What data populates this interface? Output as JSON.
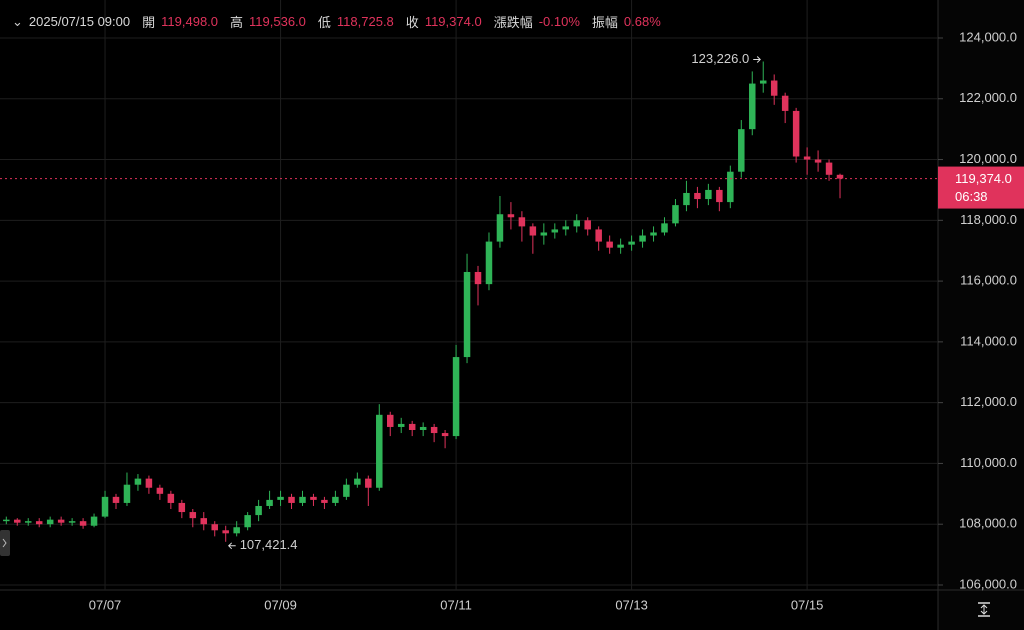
{
  "header": {
    "datetime": "2025/07/15 09:00",
    "items": [
      {
        "label": "開",
        "value": "119,498.0"
      },
      {
        "label": "高",
        "value": "119,536.0"
      },
      {
        "label": "低",
        "value": "118,725.8"
      },
      {
        "label": "收",
        "value": "119,374.0"
      },
      {
        "label": "漲跌幅",
        "value": "-0.10%"
      },
      {
        "label": "振幅",
        "value": "0.68%"
      }
    ]
  },
  "chart_data": {
    "type": "candlestick",
    "categories": [
      null,
      null,
      null,
      null,
      null,
      null,
      null,
      null,
      null,
      "07/07",
      null,
      null,
      null,
      null,
      null,
      null,
      null,
      null,
      null,
      null,
      null,
      null,
      null,
      null,
      null,
      "07/09",
      null,
      null,
      null,
      null,
      null,
      null,
      null,
      null,
      null,
      null,
      null,
      null,
      null,
      null,
      null,
      "07/11",
      null,
      null,
      null,
      null,
      null,
      null,
      null,
      null,
      null,
      null,
      null,
      null,
      null,
      null,
      null,
      "07/13",
      null,
      null,
      null,
      null,
      null,
      null,
      null,
      null,
      null,
      null,
      null,
      null,
      null,
      null,
      null,
      "07/15",
      null,
      null,
      null
    ],
    "open": [
      108100,
      108150,
      108050,
      108100,
      108000,
      108150,
      108050,
      108100,
      107950,
      108250,
      108900,
      108700,
      109300,
      109500,
      109200,
      109000,
      108700,
      108400,
      108200,
      108000,
      107800,
      107700,
      107900,
      108300,
      108600,
      108800,
      108900,
      108700,
      108900,
      108800,
      108700,
      108900,
      109300,
      109500,
      109200,
      111600,
      111200,
      111300,
      111100,
      111200,
      111000,
      110900,
      113500,
      116300,
      115900,
      117300,
      118200,
      118100,
      117800,
      117500,
      117600,
      117700,
      117800,
      118000,
      117700,
      117300,
      117100,
      117200,
      117300,
      117500,
      117600,
      117900,
      118500,
      118900,
      118700,
      119000,
      118600,
      119600,
      121000,
      122500,
      122600,
      122100,
      121600,
      120100,
      120000,
      119900,
      119498
    ],
    "high": [
      108250,
      108200,
      108200,
      108200,
      108250,
      108250,
      108200,
      108200,
      108350,
      109100,
      109000,
      109700,
      109650,
      109600,
      109300,
      109100,
      108800,
      108500,
      108400,
      108100,
      107950,
      108100,
      108400,
      108800,
      109100,
      109100,
      109000,
      109100,
      109000,
      108900,
      109100,
      109500,
      109700,
      109600,
      111950,
      111700,
      111500,
      111400,
      111350,
      111300,
      111100,
      113900,
      116900,
      116500,
      117600,
      118800,
      118600,
      118300,
      117900,
      117900,
      117900,
      118000,
      118200,
      118100,
      117800,
      117500,
      117400,
      117500,
      117700,
      117800,
      118100,
      118700,
      119300,
      119100,
      119200,
      119100,
      119800,
      121300,
      122900,
      123226,
      122800,
      122200,
      121700,
      120400,
      120300,
      120000,
      119536
    ],
    "low": [
      108000,
      107950,
      107950,
      107900,
      107900,
      107950,
      107950,
      107850,
      107900,
      108200,
      108500,
      108600,
      109100,
      109000,
      108800,
      108500,
      108200,
      107900,
      107800,
      107600,
      107421.4,
      107600,
      107800,
      108100,
      108500,
      108600,
      108500,
      108600,
      108600,
      108500,
      108600,
      108800,
      109200,
      108600,
      109100,
      110900,
      111000,
      110900,
      110900,
      110700,
      110500,
      110800,
      113300,
      115200,
      115700,
      117100,
      117700,
      117300,
      116900,
      117200,
      117400,
      117500,
      117600,
      117500,
      117000,
      116900,
      116900,
      117000,
      117100,
      117300,
      117500,
      117800,
      118300,
      118400,
      118500,
      118300,
      118400,
      119400,
      120800,
      122200,
      121800,
      121200,
      119900,
      119500,
      119600,
      119300,
      118725.8
    ],
    "close": [
      108150,
      108050,
      108100,
      108000,
      108150,
      108050,
      108100,
      107950,
      108250,
      108900,
      108700,
      109300,
      109500,
      109200,
      109000,
      108700,
      108400,
      108200,
      108000,
      107800,
      107700,
      107900,
      108300,
      108600,
      108800,
      108900,
      108700,
      108900,
      108800,
      108700,
      108900,
      109300,
      109500,
      109200,
      111600,
      111200,
      111300,
      111100,
      111200,
      111000,
      110900,
      113500,
      116300,
      115900,
      117300,
      118200,
      118100,
      117800,
      117500,
      117600,
      117700,
      117800,
      118000,
      117700,
      117300,
      117100,
      117200,
      117300,
      117500,
      117600,
      117900,
      118500,
      118900,
      118700,
      119000,
      118600,
      119600,
      121000,
      122500,
      122600,
      122100,
      121600,
      120100,
      120000,
      119900,
      119498,
      119374
    ],
    "up_color": "#2fb457",
    "down_color": "#e0335c",
    "ylim": [
      105835,
      125250
    ],
    "yticks": [
      {
        "value": 106000,
        "label": "106,000.0"
      },
      {
        "value": 108000,
        "label": "108,000.0"
      },
      {
        "value": 110000,
        "label": "110,000.0"
      },
      {
        "value": 112000,
        "label": "112,000.0"
      },
      {
        "value": 114000,
        "label": "114,000.0"
      },
      {
        "value": 116000,
        "label": "116,000.0"
      },
      {
        "value": 118000,
        "label": "118,000.0"
      },
      {
        "value": 120000,
        "label": "120,000.0"
      },
      {
        "value": 122000,
        "label": "122,000.0"
      },
      {
        "value": 124000,
        "label": "124,000.0"
      }
    ],
    "grid": true,
    "high_label": "123,226.0",
    "low_label": "107,421.4",
    "last_price_label": "119,374.0",
    "countdown": "06:38"
  }
}
